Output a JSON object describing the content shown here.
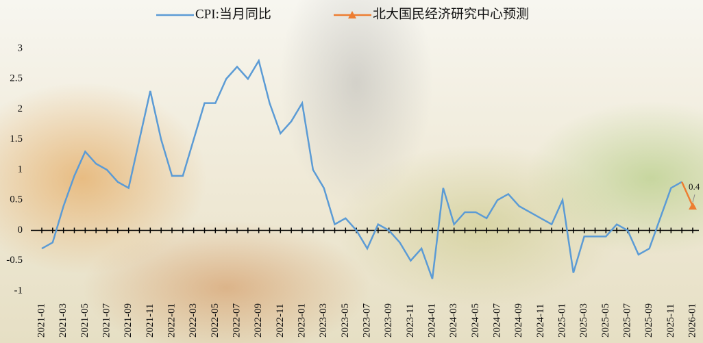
{
  "chart_data": {
    "type": "line",
    "categories": [
      "2021-01",
      null,
      "2021-03",
      null,
      "2021-05",
      null,
      "2021-07",
      null,
      "2021-09",
      null,
      "2021-11",
      null,
      "2022-01",
      null,
      "2022-03",
      null,
      "2022-05",
      null,
      "2022-07",
      null,
      "2022-09",
      null,
      "2022-11",
      null,
      "2023-01",
      null,
      "2023-03",
      null,
      "2023-05",
      null,
      "2023-07",
      null,
      "2023-09",
      null,
      "2023-11",
      null,
      "2024-01",
      null,
      "2024-03",
      null,
      "2024-05",
      null,
      "2024-07",
      null,
      "2024-09",
      null,
      "2024-11",
      null,
      "2025-01",
      null,
      "2025-03",
      null,
      "2025-05",
      null,
      "2025-07",
      null,
      "2025-09",
      null,
      "2025-11",
      null,
      "2026-01"
    ],
    "series": [
      {
        "name": "CPI:当月同比",
        "color": "#5b9bd5",
        "values": [
          -0.3,
          -0.2,
          0.4,
          0.9,
          1.3,
          1.1,
          1.0,
          0.8,
          0.7,
          1.5,
          2.3,
          1.5,
          0.9,
          0.9,
          1.5,
          2.1,
          2.1,
          2.5,
          2.7,
          2.5,
          2.8,
          2.1,
          1.6,
          1.8,
          2.1,
          1.0,
          0.7,
          0.1,
          0.2,
          0.0,
          -0.3,
          0.1,
          0.0,
          -0.2,
          -0.5,
          -0.3,
          -0.8,
          0.7,
          0.1,
          0.3,
          0.3,
          0.2,
          0.5,
          0.6,
          0.4,
          0.3,
          0.2,
          0.1,
          0.5,
          -0.7,
          -0.1,
          -0.1,
          -0.1,
          0.1,
          0.0,
          -0.4,
          -0.3,
          0.2,
          0.7,
          0.8,
          null
        ]
      },
      {
        "name": "北大国民经济研究中心预测",
        "color": "#ed7d31",
        "marker": "triangle",
        "values": [
          null,
          null,
          null,
          null,
          null,
          null,
          null,
          null,
          null,
          null,
          null,
          null,
          null,
          null,
          null,
          null,
          null,
          null,
          null,
          null,
          null,
          null,
          null,
          null,
          null,
          null,
          null,
          null,
          null,
          null,
          null,
          null,
          null,
          null,
          null,
          null,
          null,
          null,
          null,
          null,
          null,
          null,
          null,
          null,
          null,
          null,
          null,
          null,
          null,
          null,
          null,
          null,
          null,
          null,
          null,
          null,
          null,
          null,
          null,
          0.8,
          0.4
        ]
      }
    ],
    "ylim": [
      -1,
      3
    ],
    "yticks": [
      -1,
      -0.5,
      0,
      0.5,
      1,
      1.5,
      2,
      2.5,
      3
    ],
    "legend": "top",
    "grid": false
  }
}
